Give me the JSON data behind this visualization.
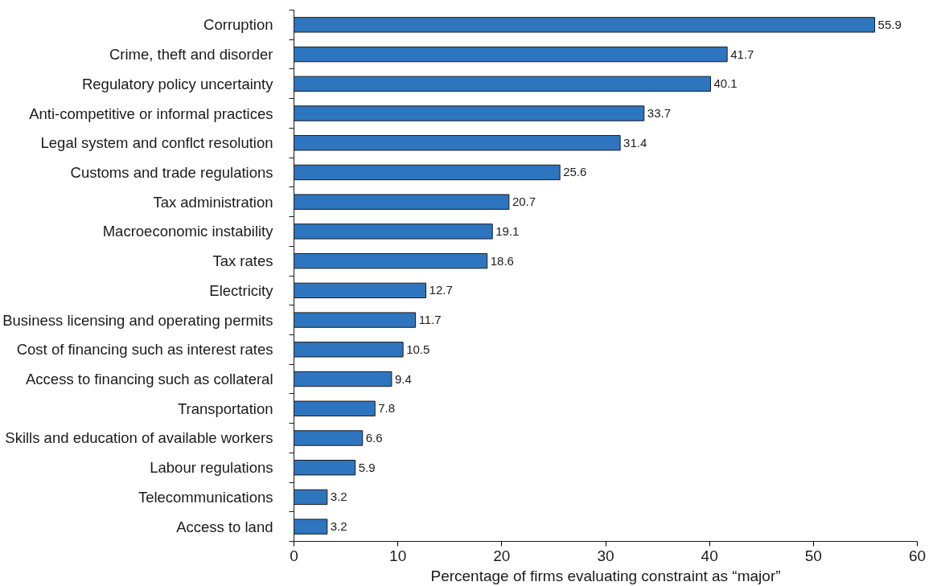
{
  "chart_data": {
    "type": "bar",
    "orientation": "horizontal",
    "xlabel": "Percentage of firms evaluating constraint as “major”",
    "categories": [
      "Corruption",
      "Crime, theft and disorder",
      "Regulatory policy uncertainty",
      "Anti-competitive or informal practices",
      "Legal system and conflct resolution",
      "Customs and trade regulations",
      "Tax administration",
      "Macroeconomic instability",
      "Tax rates",
      "Electricity",
      "Business licensing and operating permits",
      "Cost of financing such as interest rates",
      "Access to financing such as collateral",
      "Transportation",
      "Skills and education of available workers",
      "Labour regulations",
      "Telecommunications",
      "Access to land"
    ],
    "values": [
      55.9,
      41.7,
      40.1,
      33.7,
      31.4,
      25.6,
      20.7,
      19.1,
      18.6,
      12.7,
      11.7,
      10.5,
      9.4,
      7.8,
      6.6,
      5.9,
      3.2,
      3.2
    ],
    "color": "#2e75c0",
    "xlim": [
      0,
      60
    ],
    "xticks": [
      0,
      10,
      20,
      30,
      40,
      50,
      60
    ],
    "grid": false,
    "data_labels": true
  }
}
